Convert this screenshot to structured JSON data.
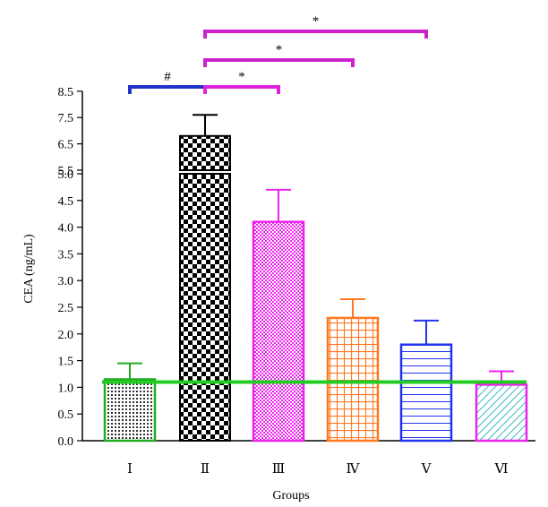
{
  "chart_data": {
    "type": "bar",
    "xlabel": "Groups",
    "ylabel": "CEA (ng/mL)",
    "categories": [
      "Ⅰ",
      "Ⅱ",
      "Ⅲ",
      "Ⅳ",
      "Ⅴ",
      "Ⅵ"
    ],
    "values": [
      1.15,
      6.8,
      4.1,
      2.3,
      1.8,
      1.05
    ],
    "error_upper": [
      1.45,
      7.6,
      4.7,
      2.65,
      2.25,
      1.3
    ],
    "axis_break": {
      "lower_max": 5.0,
      "upper_min": 5.5
    },
    "ylim": [
      0,
      8.5
    ],
    "yticks_lower": [
      "0.0",
      "0.5",
      "1.0",
      "1.5",
      "2.0",
      "2.5",
      "3.0",
      "3.5",
      "4.0",
      "4.5",
      "5.0"
    ],
    "yticks_upper": [
      "5.5",
      "6.5",
      "7.5",
      "8.5"
    ],
    "reference_line": 1.1,
    "colors": [
      "#22aa22",
      "#000000",
      "#ee22ee",
      "#ff7722",
      "#2233ee",
      "#ee22ee"
    ],
    "patterns": [
      "dots",
      "checker",
      "fine-check",
      "grid",
      "horizontal",
      "diagonal"
    ],
    "reference_color": "#22cc22",
    "significance": [
      {
        "from": 0,
        "to": 1,
        "label": "#",
        "color": "#2233cc"
      },
      {
        "from": 1,
        "to": 2,
        "label": "*",
        "color": "#dd22dd"
      },
      {
        "from": 1,
        "to": 3,
        "label": "*",
        "color": "#cc22cc"
      },
      {
        "from": 1,
        "to": 4,
        "label": "*",
        "color": "#cc22cc"
      }
    ],
    "grid": false
  }
}
